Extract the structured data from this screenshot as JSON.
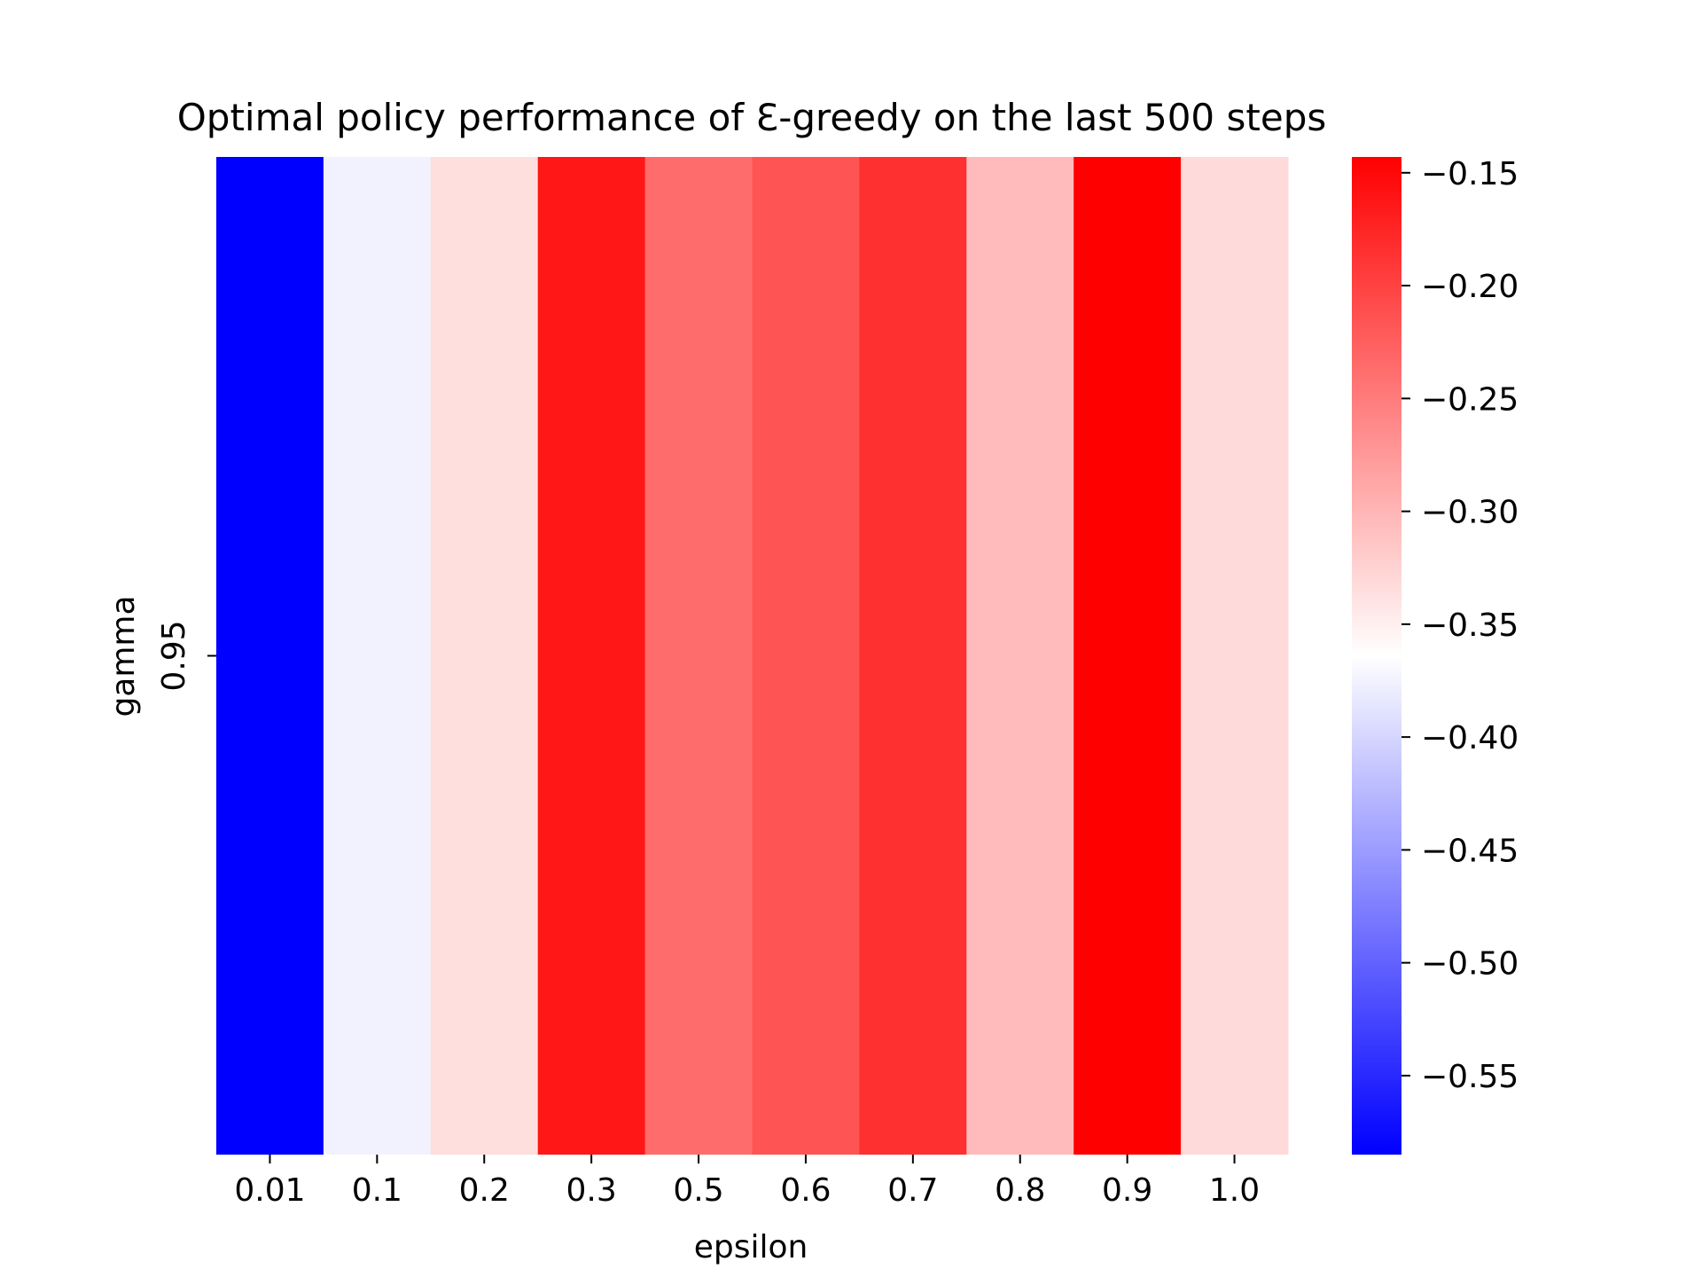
{
  "chart_data": {
    "type": "heatmap",
    "title": "Optimal policy performance of Ɛ-greedy on the last 500 steps",
    "xlabel": "epsilon",
    "ylabel": "gamma",
    "x_categories": [
      "0.01",
      "0.1",
      "0.2",
      "0.3",
      "0.5",
      "0.6",
      "0.7",
      "0.8",
      "0.9",
      "1.0"
    ],
    "y_categories": [
      "0.95"
    ],
    "values": [
      [
        -0.585,
        -0.375,
        -0.335,
        -0.163,
        -0.237,
        -0.216,
        -0.185,
        -0.305,
        -0.143,
        -0.332
      ]
    ],
    "colormap": "bwr",
    "colorbar": {
      "vmin": -0.585,
      "vmax": -0.143,
      "ticks": [
        -0.15,
        -0.2,
        -0.25,
        -0.3,
        -0.35,
        -0.4,
        -0.45,
        -0.5,
        -0.55
      ],
      "tick_labels": [
        "−0.15",
        "−0.20",
        "−0.25",
        "−0.30",
        "−0.35",
        "−0.40",
        "−0.45",
        "−0.50",
        "−0.55"
      ]
    },
    "colors": {
      "low": "#0000ff",
      "mid": "#ffffff",
      "high": "#ff0000"
    },
    "grid": false,
    "colorbar_position": "right"
  }
}
